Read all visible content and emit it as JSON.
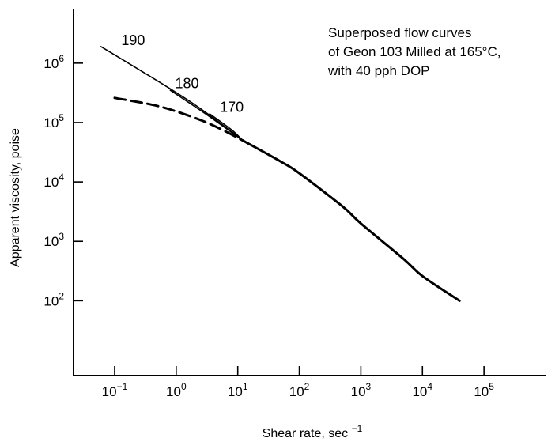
{
  "chart_data": {
    "type": "line",
    "xscale": "log",
    "yscale": "log",
    "xlim": [
      0.0215,
      1000000
    ],
    "ylim": [
      5.5,
      8000000
    ],
    "xlabel_text": "Shear rate, sec",
    "xlabel_exp": "−1",
    "ylabel": "Apparent viscosity,  poise",
    "annotation_lines": [
      "Superposed flow curves",
      "of Geon 103 Milled at 165°C,",
      "with 40 pph DOP"
    ],
    "x_ticks": [
      {
        "value": 0.1,
        "base": "10",
        "exp": "−1"
      },
      {
        "value": 1,
        "base": "10",
        "exp": "0"
      },
      {
        "value": 10,
        "base": "10",
        "exp": "1"
      },
      {
        "value": 100,
        "base": "10",
        "exp": "2"
      },
      {
        "value": 1000,
        "base": "10",
        "exp": "3"
      },
      {
        "value": 10000,
        "base": "10",
        "exp": "4"
      },
      {
        "value": 100000,
        "base": "10",
        "exp": "5"
      }
    ],
    "y_ticks": [
      {
        "value": 100,
        "base": "10",
        "exp": "2"
      },
      {
        "value": 1000,
        "base": "10",
        "exp": "3"
      },
      {
        "value": 10000,
        "base": "10",
        "exp": "4"
      },
      {
        "value": 100000,
        "base": "10",
        "exp": "5"
      },
      {
        "value": 1000000,
        "base": "10",
        "exp": "6"
      }
    ],
    "series": [
      {
        "name": "190",
        "style": "solid-thin",
        "x": [
          0.06,
          0.5,
          2,
          8,
          12
        ],
        "y": [
          1900000,
          500000,
          200000,
          70000,
          50000
        ]
      },
      {
        "name": "180",
        "style": "solid-thin",
        "x": [
          0.8,
          3,
          12
        ],
        "y": [
          350000,
          140000,
          50000
        ]
      },
      {
        "name": "170",
        "style": "solid-thin",
        "x": [
          3.5,
          8,
          12
        ],
        "y": [
          140000,
          75000,
          50000
        ]
      },
      {
        "name": "",
        "style": "dashed",
        "x": [
          0.1,
          0.5,
          2,
          5,
          12
        ],
        "y": [
          260000,
          190000,
          120000,
          80000,
          50000
        ]
      },
      {
        "name": "",
        "style": "solid-thick",
        "x": [
          12,
          50,
          100,
          500,
          1000,
          5000,
          10000,
          40000
        ],
        "y": [
          50000,
          22000,
          14000,
          3900,
          2000,
          500,
          260,
          100
        ]
      }
    ],
    "series_labels": [
      {
        "text": "190",
        "x": 0.2,
        "y": 2000000
      },
      {
        "text": "180",
        "x": 1.5,
        "y": 380000
      },
      {
        "text": "170",
        "x": 8,
        "y": 150000
      }
    ]
  }
}
